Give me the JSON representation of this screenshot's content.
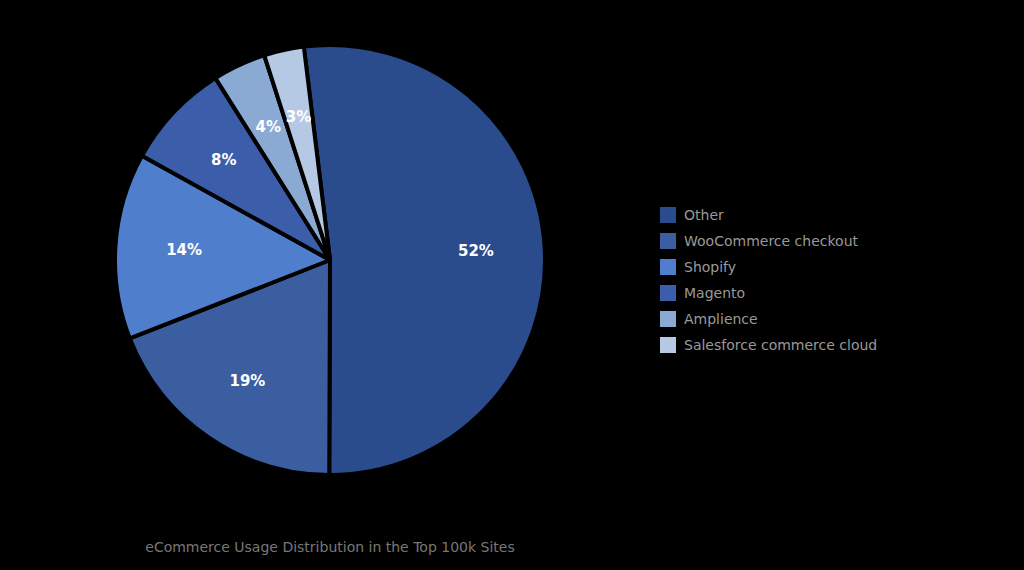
{
  "chart_data": {
    "type": "pie",
    "title": "eCommerce Usage Distribution in the Top 100k Sites",
    "categories": [
      "Other",
      "WooCommerce checkout",
      "Shopify",
      "Magento",
      "Amplience",
      "Salesforce commerce cloud"
    ],
    "values": [
      52,
      19,
      14,
      8,
      4,
      3
    ],
    "value_labels": [
      "52%",
      "19%",
      "14%",
      "8%",
      "4%",
      "3%"
    ],
    "colors": [
      "#2B4C8C",
      "#3A5EA0",
      "#4F7FCC",
      "#3B5DAA",
      "#8AAAD4",
      "#B5C9E5"
    ],
    "data_labels": true,
    "legend": "right"
  }
}
